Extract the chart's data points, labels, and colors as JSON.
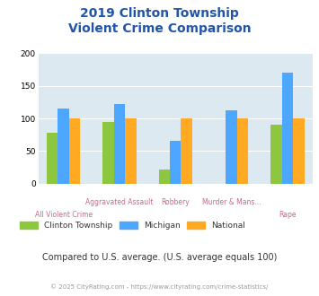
{
  "title_line1": "2019 Clinton Township",
  "title_line2": "Violent Crime Comparison",
  "series": {
    "Clinton Township": [
      78,
      95,
      22,
      0,
      90
    ],
    "Michigan": [
      115,
      122,
      65,
      112,
      170
    ],
    "National": [
      100,
      100,
      100,
      100,
      100
    ]
  },
  "colors": {
    "Clinton Township": "#8dc63f",
    "Michigan": "#4da6ff",
    "National": "#ffaa22"
  },
  "ylim": [
    0,
    200
  ],
  "yticks": [
    0,
    50,
    100,
    150,
    200
  ],
  "background_color": "#dce9f0",
  "note": "Compared to U.S. average. (U.S. average equals 100)",
  "footer": "© 2025 CityRating.com - https://www.cityrating.com/crime-statistics/",
  "title_color": "#2255aa",
  "xlabel_top_color": "#cc6688",
  "xlabel_bot_color": "#cc6688",
  "footer_color": "#999999",
  "note_color": "#333333",
  "legend_colors": [
    "#8dc63f",
    "#4da6ff",
    "#ffaa22"
  ],
  "legend_labels": [
    "Clinton Township",
    "Michigan",
    "National"
  ]
}
